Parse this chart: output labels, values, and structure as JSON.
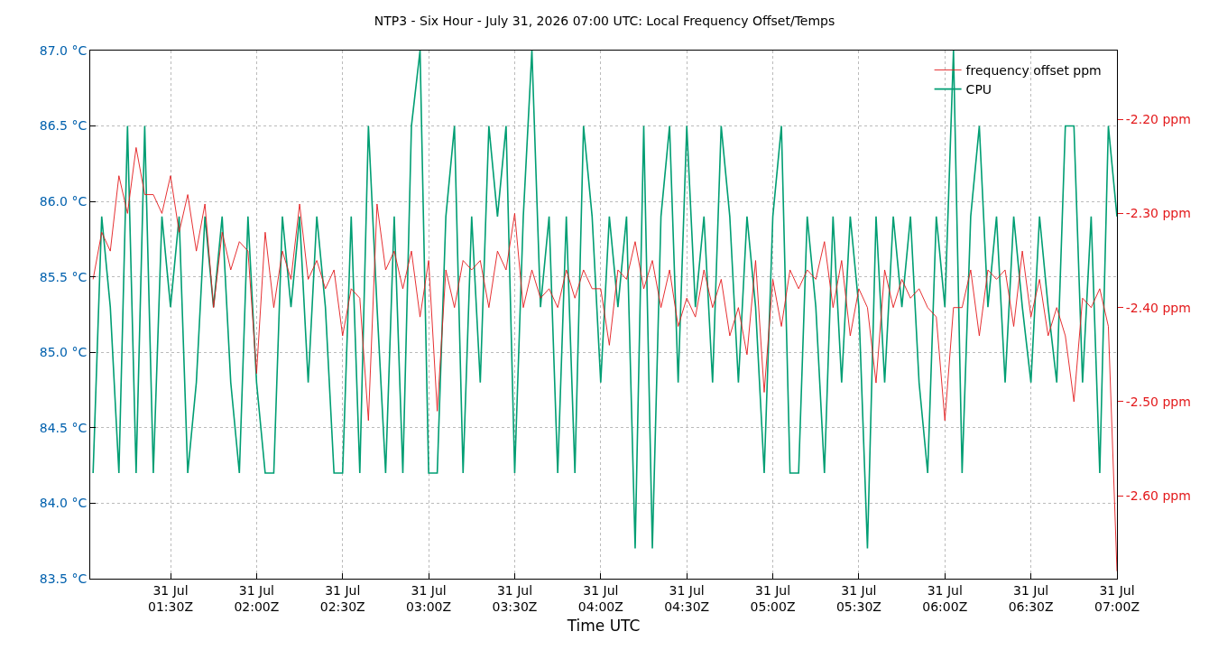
{
  "chart_data": {
    "type": "line",
    "title": "NTP3 - Six Hour - July 31, 2026 07:00 UTC: Local Frequency Offset/Temps",
    "xlabel": "Time UTC",
    "x": [
      "2026-07-31T01:03",
      "2026-07-31T01:06",
      "2026-07-31T01:09",
      "2026-07-31T01:12",
      "2026-07-31T01:15",
      "2026-07-31T01:18",
      "2026-07-31T01:21",
      "2026-07-31T01:24",
      "2026-07-31T01:27",
      "2026-07-31T01:30",
      "2026-07-31T01:33",
      "2026-07-31T01:36",
      "2026-07-31T01:39",
      "2026-07-31T01:42",
      "2026-07-31T01:45",
      "2026-07-31T01:48",
      "2026-07-31T01:51",
      "2026-07-31T01:54",
      "2026-07-31T01:57",
      "2026-07-31T02:00",
      "2026-07-31T02:03",
      "2026-07-31T02:06",
      "2026-07-31T02:09",
      "2026-07-31T02:12",
      "2026-07-31T02:15",
      "2026-07-31T02:18",
      "2026-07-31T02:21",
      "2026-07-31T02:24",
      "2026-07-31T02:27",
      "2026-07-31T02:30",
      "2026-07-31T02:33",
      "2026-07-31T02:36",
      "2026-07-31T02:39",
      "2026-07-31T02:42",
      "2026-07-31T02:45",
      "2026-07-31T02:48",
      "2026-07-31T02:51",
      "2026-07-31T02:54",
      "2026-07-31T02:57",
      "2026-07-31T03:00",
      "2026-07-31T03:03",
      "2026-07-31T03:06",
      "2026-07-31T03:09",
      "2026-07-31T03:12",
      "2026-07-31T03:15",
      "2026-07-31T03:18",
      "2026-07-31T03:21",
      "2026-07-31T03:24",
      "2026-07-31T03:27",
      "2026-07-31T03:30",
      "2026-07-31T03:33",
      "2026-07-31T03:36",
      "2026-07-31T03:39",
      "2026-07-31T03:42",
      "2026-07-31T03:45",
      "2026-07-31T03:48",
      "2026-07-31T03:51",
      "2026-07-31T03:54",
      "2026-07-31T03:57",
      "2026-07-31T04:00",
      "2026-07-31T04:03",
      "2026-07-31T04:06",
      "2026-07-31T04:09",
      "2026-07-31T04:12",
      "2026-07-31T04:15",
      "2026-07-31T04:18",
      "2026-07-31T04:21",
      "2026-07-31T04:24",
      "2026-07-31T04:27",
      "2026-07-31T04:30",
      "2026-07-31T04:33",
      "2026-07-31T04:36",
      "2026-07-31T04:39",
      "2026-07-31T04:42",
      "2026-07-31T04:45",
      "2026-07-31T04:48",
      "2026-07-31T04:51",
      "2026-07-31T04:54",
      "2026-07-31T04:57",
      "2026-07-31T05:00",
      "2026-07-31T05:03",
      "2026-07-31T05:06",
      "2026-07-31T05:09",
      "2026-07-31T05:12",
      "2026-07-31T05:15",
      "2026-07-31T05:18",
      "2026-07-31T05:21",
      "2026-07-31T05:24",
      "2026-07-31T05:27",
      "2026-07-31T05:30",
      "2026-07-31T05:33",
      "2026-07-31T05:36",
      "2026-07-31T05:39",
      "2026-07-31T05:42",
      "2026-07-31T05:45",
      "2026-07-31T05:48",
      "2026-07-31T05:51",
      "2026-07-31T05:54",
      "2026-07-31T05:57",
      "2026-07-31T06:00",
      "2026-07-31T06:03",
      "2026-07-31T06:06",
      "2026-07-31T06:09",
      "2026-07-31T06:12",
      "2026-07-31T06:15",
      "2026-07-31T06:18",
      "2026-07-31T06:21",
      "2026-07-31T06:24",
      "2026-07-31T06:27",
      "2026-07-31T06:30",
      "2026-07-31T06:33",
      "2026-07-31T06:36",
      "2026-07-31T06:39",
      "2026-07-31T06:42",
      "2026-07-31T06:45",
      "2026-07-31T06:48",
      "2026-07-31T06:51",
      "2026-07-31T06:54",
      "2026-07-31T06:57",
      "2026-07-31T07:00"
    ],
    "series": [
      {
        "name": "frequency offset ppm",
        "color": "#e31a1c",
        "axis": "y2",
        "values": [
          -2.37,
          -2.32,
          -2.34,
          -2.26,
          -2.3,
          -2.23,
          -2.28,
          -2.28,
          -2.3,
          -2.26,
          -2.32,
          -2.28,
          -2.34,
          -2.29,
          -2.4,
          -2.32,
          -2.36,
          -2.33,
          -2.34,
          -2.47,
          -2.32,
          -2.4,
          -2.34,
          -2.37,
          -2.29,
          -2.37,
          -2.35,
          -2.38,
          -2.36,
          -2.43,
          -2.38,
          -2.39,
          -2.52,
          -2.29,
          -2.36,
          -2.34,
          -2.38,
          -2.34,
          -2.41,
          -2.35,
          -2.51,
          -2.36,
          -2.4,
          -2.35,
          -2.36,
          -2.35,
          -2.4,
          -2.34,
          -2.36,
          -2.3,
          -2.4,
          -2.36,
          -2.39,
          -2.38,
          -2.4,
          -2.36,
          -2.39,
          -2.36,
          -2.38,
          -2.38,
          -2.44,
          -2.36,
          -2.37,
          -2.33,
          -2.38,
          -2.35,
          -2.4,
          -2.36,
          -2.42,
          -2.39,
          -2.41,
          -2.36,
          -2.4,
          -2.37,
          -2.43,
          -2.4,
          -2.45,
          -2.35,
          -2.49,
          -2.37,
          -2.42,
          -2.36,
          -2.38,
          -2.36,
          -2.37,
          -2.33,
          -2.4,
          -2.35,
          -2.43,
          -2.38,
          -2.4,
          -2.48,
          -2.36,
          -2.4,
          -2.37,
          -2.39,
          -2.38,
          -2.4,
          -2.41,
          -2.52,
          -2.4,
          -2.4,
          -2.36,
          -2.43,
          -2.36,
          -2.37,
          -2.36,
          -2.42,
          -2.34,
          -2.41,
          -2.37,
          -2.43,
          -2.4,
          -2.43,
          -2.5,
          -2.39,
          -2.4,
          -2.38,
          -2.42,
          -2.68
        ]
      },
      {
        "name": "CPU",
        "color": "#009e73",
        "values": [
          84.2,
          85.9,
          85.3,
          84.2,
          86.5,
          84.2,
          86.5,
          84.2,
          85.9,
          85.3,
          85.9,
          84.2,
          84.8,
          85.9,
          85.3,
          85.9,
          84.8,
          84.2,
          85.9,
          84.8,
          84.2,
          84.2,
          85.9,
          85.3,
          85.9,
          84.8,
          85.9,
          85.3,
          84.2,
          84.2,
          85.9,
          84.2,
          86.5,
          85.3,
          84.2,
          85.9,
          84.2,
          86.5,
          87.0,
          84.2,
          84.2,
          85.9,
          86.5,
          84.2,
          85.9,
          84.8,
          86.5,
          85.9,
          86.5,
          84.2,
          85.9,
          87.0,
          85.3,
          85.9,
          84.2,
          85.9,
          84.2,
          86.5,
          85.9,
          84.8,
          85.9,
          85.3,
          85.9,
          83.7,
          86.5,
          83.7,
          85.9,
          86.5,
          84.8,
          86.5,
          85.3,
          85.9,
          84.8,
          86.5,
          85.9,
          84.8,
          85.9,
          85.3,
          84.2,
          85.9,
          86.5,
          84.2,
          84.2,
          85.9,
          85.3,
          84.2,
          85.9,
          84.8,
          85.9,
          85.3,
          83.7,
          85.9,
          84.8,
          85.9,
          85.3,
          85.9,
          84.8,
          84.2,
          85.9,
          85.3,
          87.0,
          84.2,
          85.9,
          86.5,
          85.3,
          85.9,
          84.8,
          85.9,
          85.3,
          84.8,
          85.9,
          85.3,
          84.8,
          86.5,
          86.5,
          84.8,
          85.9,
          84.2,
          86.5,
          85.9
        ]
      }
    ],
    "xlim": [
      "2026-07-31T01:02",
      "2026-07-31T07:00"
    ],
    "xticks": [
      {
        "value": "2026-07-31T01:30",
        "label": "31 Jul\n01:30Z"
      },
      {
        "value": "2026-07-31T02:00",
        "label": "31 Jul\n02:00Z"
      },
      {
        "value": "2026-07-31T02:30",
        "label": "31 Jul\n02:30Z"
      },
      {
        "value": "2026-07-31T03:00",
        "label": "31 Jul\n03:00Z"
      },
      {
        "value": "2026-07-31T03:30",
        "label": "31 Jul\n03:30Z"
      },
      {
        "value": "2026-07-31T04:00",
        "label": "31 Jul\n04:00Z"
      },
      {
        "value": "2026-07-31T04:30",
        "label": "31 Jul\n04:30Z"
      },
      {
        "value": "2026-07-31T05:00",
        "label": "31 Jul\n05:00Z"
      },
      {
        "value": "2026-07-31T05:30",
        "label": "31 Jul\n05:30Z"
      },
      {
        "value": "2026-07-31T06:00",
        "label": "31 Jul\n06:00Z"
      },
      {
        "value": "2026-07-31T06:30",
        "label": "31 Jul\n06:30Z"
      },
      {
        "value": "2026-07-31T07:00",
        "label": "31 Jul\n07:00Z"
      }
    ],
    "ylim": [
      83.5,
      87.0
    ],
    "yticks": [
      {
        "value": 83.5,
        "label": "83.5 °C"
      },
      {
        "value": 84.0,
        "label": "84.0 °C"
      },
      {
        "value": 84.5,
        "label": "84.5 °C"
      },
      {
        "value": 85.0,
        "label": "85.0 °C"
      },
      {
        "value": 85.5,
        "label": "85.5 °C"
      },
      {
        "value": 86.0,
        "label": "86.0 °C"
      },
      {
        "value": 86.5,
        "label": "86.5 °C"
      },
      {
        "value": 87.0,
        "label": "87.0 °C"
      }
    ],
    "y2lim": [
      -2.688,
      -2.127
    ],
    "y2ticks": [
      {
        "value": -2.2,
        "label": "-2.20 ppm"
      },
      {
        "value": -2.3,
        "label": "-2.30 ppm"
      },
      {
        "value": -2.4,
        "label": "-2.40 ppm"
      },
      {
        "value": -2.5,
        "label": "-2.50 ppm"
      },
      {
        "value": -2.6,
        "label": "-2.60 ppm"
      }
    ],
    "grid": true,
    "legend": "top right",
    "line_style": "solid",
    "marker": "none"
  }
}
